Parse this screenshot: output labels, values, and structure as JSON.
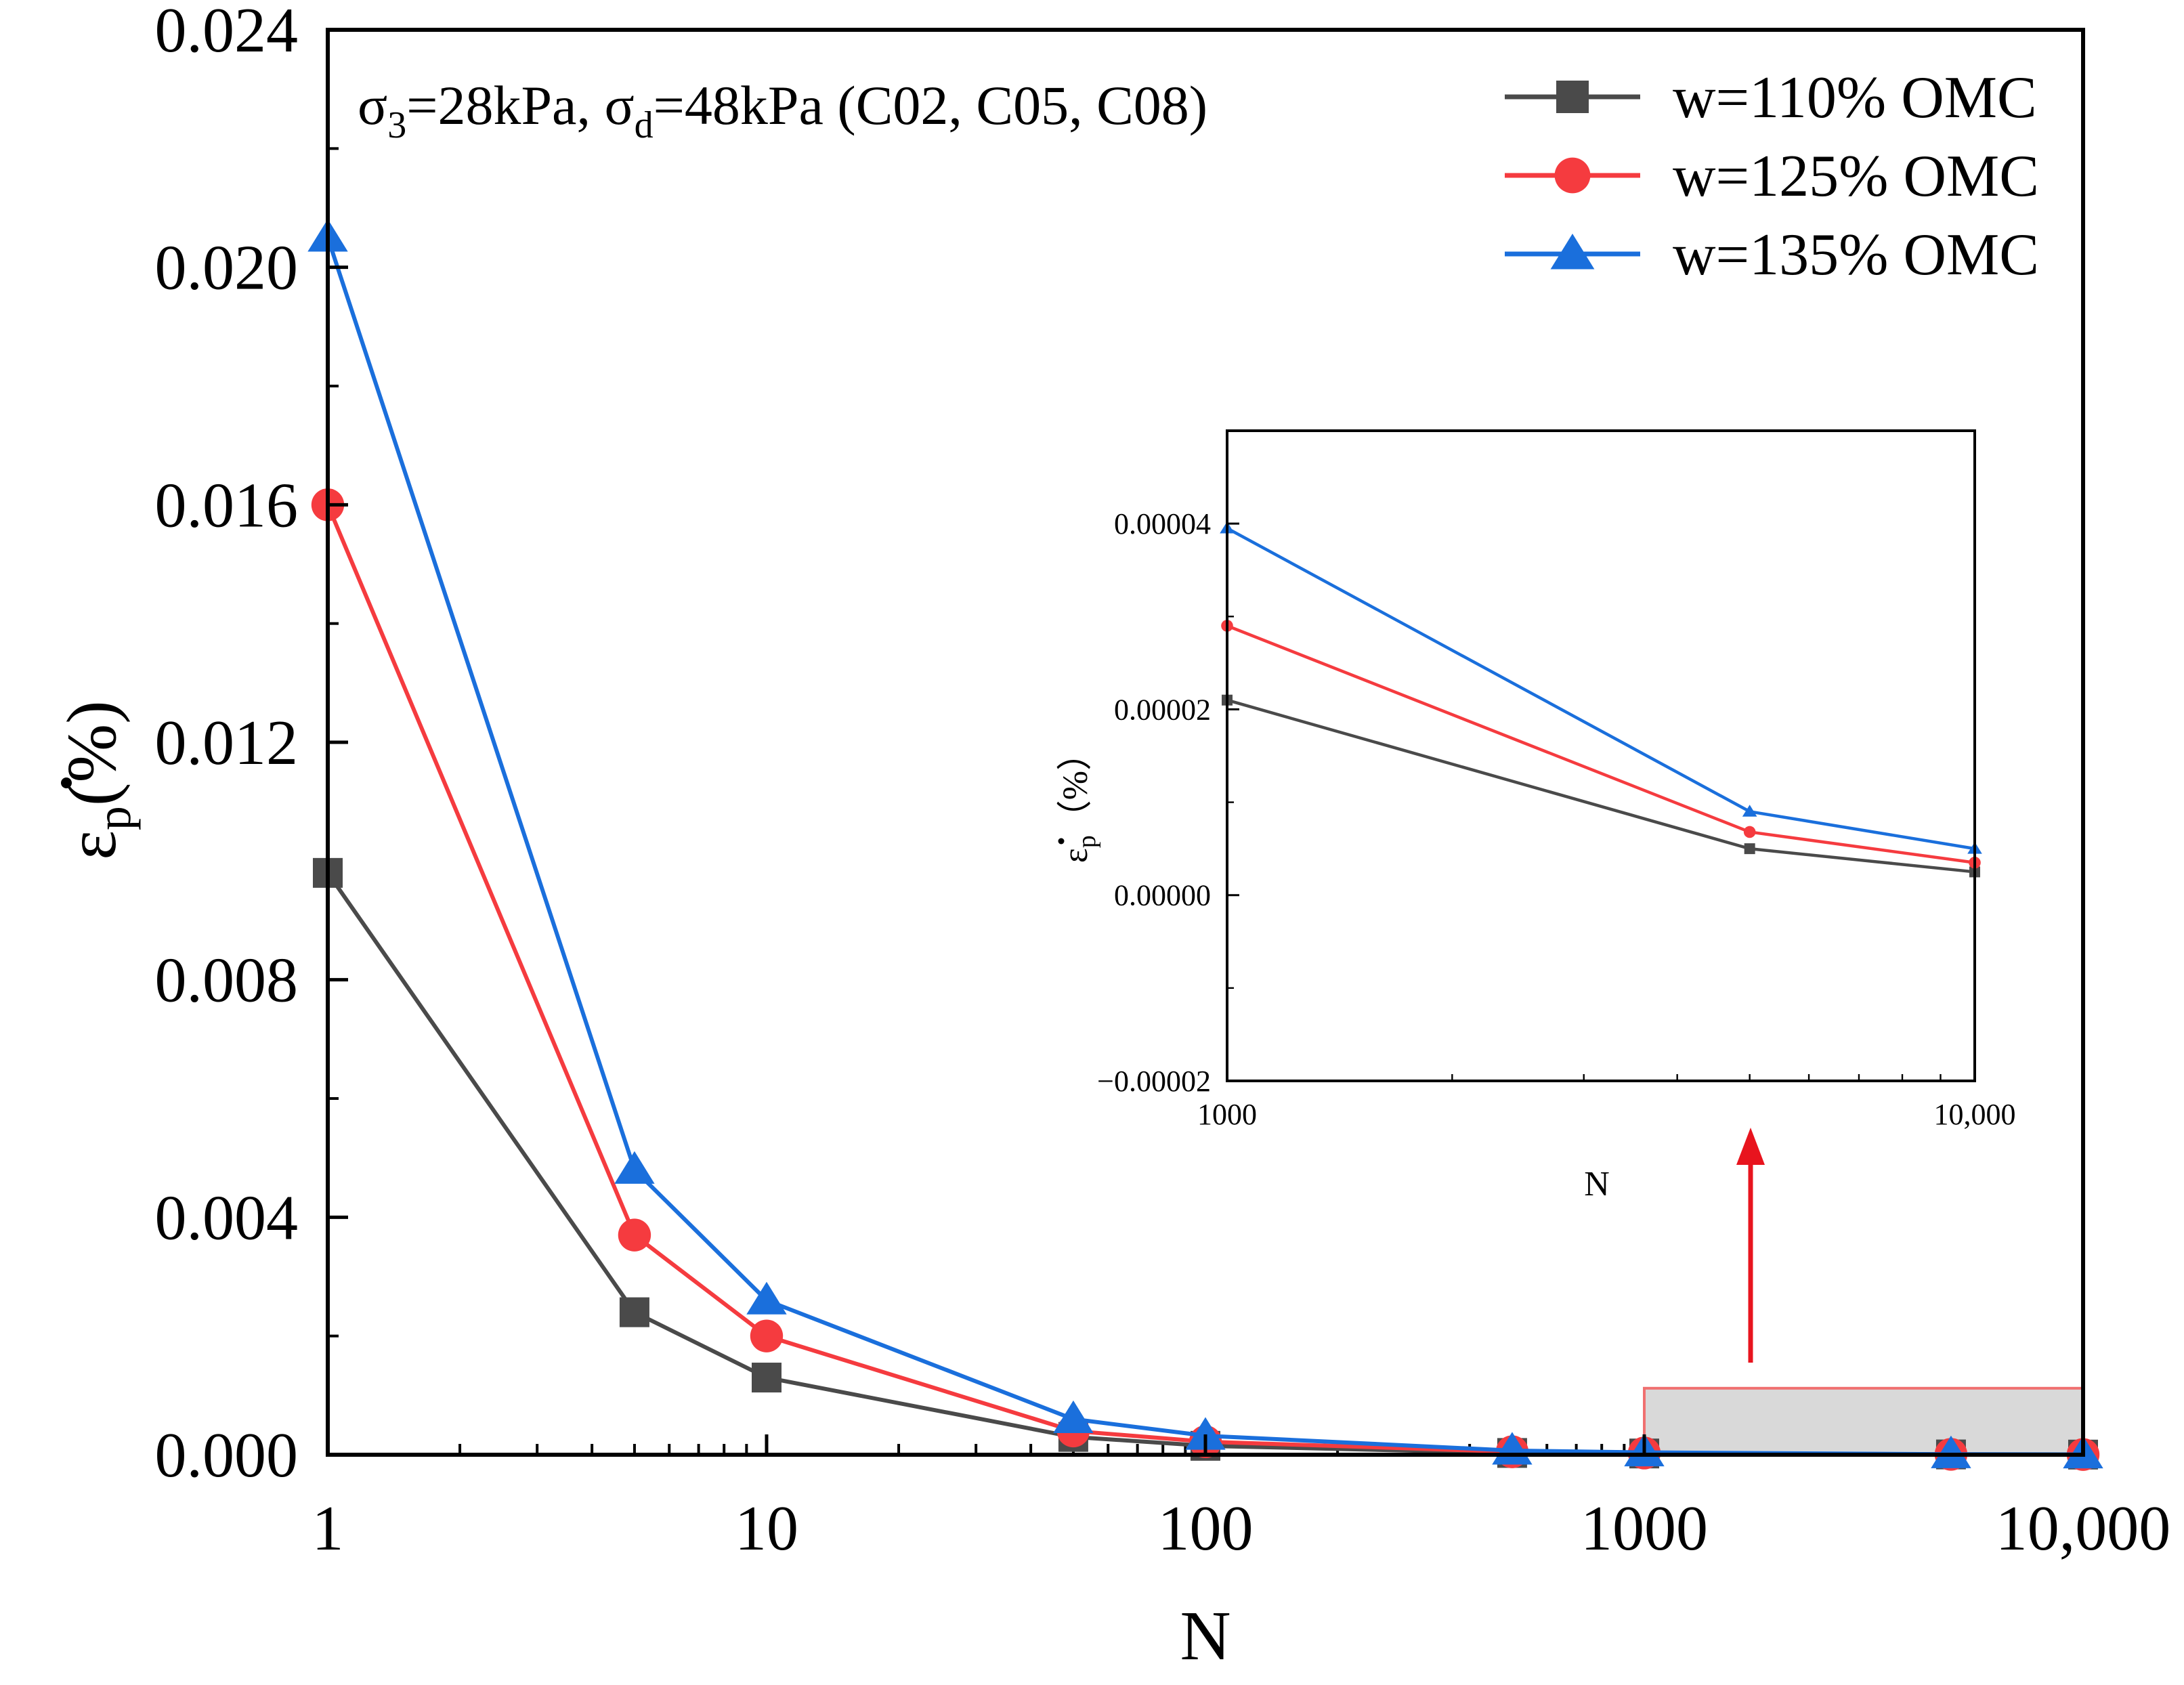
{
  "chart_data": [
    {
      "type": "line",
      "id": "main",
      "title": "",
      "annotation": {
        "sigma3_symbol": "σ",
        "sigma3_sub": "3",
        "sigma3_value": "=28kPa, ",
        "sigmad_symbol": "σ",
        "sigmad_sub": "d",
        "sigmad_value": "=48kPa (C02, C05, C08)"
      },
      "xlabel": "N",
      "ylabel": {
        "symbol": "ε",
        "sub": "p",
        "unit": "(%)"
      },
      "xscale": "log",
      "xlim": [
        1,
        10000
      ],
      "ylim": [
        0,
        0.024
      ],
      "x_ticks": [
        {
          "value": 1,
          "label": "1"
        },
        {
          "value": 10,
          "label": "10"
        },
        {
          "value": 100,
          "label": "100"
        },
        {
          "value": 1000,
          "label": "1000"
        },
        {
          "value": 10000,
          "label": "10,000"
        }
      ],
      "y_ticks": [
        {
          "value": 0,
          "label": "0.000"
        },
        {
          "value": 0.004,
          "label": "0.004"
        },
        {
          "value": 0.008,
          "label": "0.008"
        },
        {
          "value": 0.012,
          "label": "0.012"
        },
        {
          "value": 0.016,
          "label": "0.016"
        },
        {
          "value": 0.02,
          "label": "0.020"
        },
        {
          "value": 0.024,
          "label": "0.024"
        }
      ],
      "legend_position": "top-right",
      "x": [
        1,
        5,
        10,
        50,
        100,
        500,
        1000,
        5000,
        10000
      ],
      "series": [
        {
          "name": "w=110% OMC",
          "color": "#4a4a4a",
          "marker": "square",
          "values": [
            0.0098,
            0.0024,
            0.0013,
            0.0003,
            0.00015,
            3e-05,
            2.1e-05,
            5e-06,
            2.5e-06
          ]
        },
        {
          "name": "w=125% OMC",
          "color": "#f53b3f",
          "marker": "circle",
          "values": [
            0.016,
            0.0037,
            0.002,
            0.0004,
            0.00022,
            5e-05,
            2.9e-05,
            6.8e-06,
            3.5e-06
          ]
        },
        {
          "name": "w=135% OMC",
          "color": "#1a6fdc",
          "marker": "triangle",
          "values": [
            0.0205,
            0.0048,
            0.0026,
            0.0006,
            0.00032,
            7e-05,
            3.95e-05,
            9e-06,
            5e-06
          ]
        }
      ],
      "highlight_region": {
        "x_range": [
          1000,
          10000
        ],
        "y_range": [
          0,
          0.00112
        ]
      }
    },
    {
      "type": "line",
      "id": "inset",
      "xlabel": "N",
      "ylabel": {
        "symbol": "ε",
        "sub": "p",
        "unit": "（%）"
      },
      "xscale": "log",
      "xlim": [
        1000,
        10000
      ],
      "ylim": [
        -2e-05,
        5e-05
      ],
      "x_ticks": [
        {
          "value": 1000,
          "label": "1000"
        },
        {
          "value": 10000,
          "label": "10,000"
        }
      ],
      "y_ticks": [
        {
          "value": -2e-05,
          "label": "−0.00002"
        },
        {
          "value": 0,
          "label": "0.00000"
        },
        {
          "value": 2e-05,
          "label": "0.00002"
        },
        {
          "value": 4e-05,
          "label": "0.00004"
        }
      ],
      "x": [
        1000,
        5000,
        10000
      ],
      "series": [
        {
          "name": "w=110% OMC",
          "color": "#4a4a4a",
          "marker": "square",
          "values": [
            2.1e-05,
            5e-06,
            2.5e-06
          ]
        },
        {
          "name": "w=125% OMC",
          "color": "#f53b3f",
          "marker": "circle",
          "values": [
            2.9e-05,
            6.8e-06,
            3.5e-06
          ]
        },
        {
          "name": "w=135% OMC",
          "color": "#1a6fdc",
          "marker": "triangle",
          "values": [
            3.95e-05,
            9e-06,
            5e-06
          ]
        }
      ]
    }
  ],
  "arrow_color": "#e8141e"
}
